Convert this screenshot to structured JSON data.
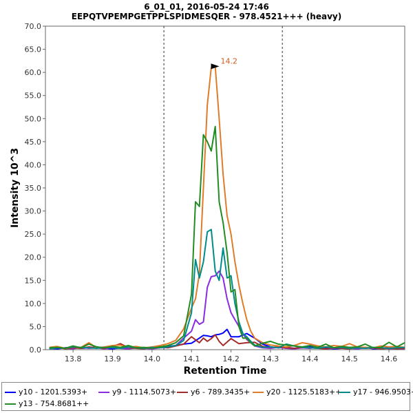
{
  "chart_data": {
    "type": "line",
    "title": "6_01_01, 2016-05-24 17:46",
    "subtitle": "EEPQTVPEMPGETPPLSPIDMESQER - 978.4521+++ (heavy)",
    "xlabel": "Retention Time",
    "ylabel": "Intensity 10^3",
    "xlim": [
      13.73,
      14.64
    ],
    "ylim": [
      0,
      70
    ],
    "x_ticks": [
      "13.8",
      "13.9",
      "14.0",
      "14.1",
      "14.2",
      "14.3",
      "14.4",
      "14.5",
      "14.6"
    ],
    "y_ticks": [
      "0.0",
      "5.0",
      "10.0",
      "15.0",
      "20.0",
      "25.0",
      "30.0",
      "35.0",
      "40.0",
      "45.0",
      "50.0",
      "55.0",
      "60.0",
      "65.0",
      "70.0"
    ],
    "vlines": [
      14.03,
      14.33
    ],
    "annotation": {
      "text": "14.2",
      "x": 14.165,
      "y": 61.3,
      "color": "#d45a1f"
    },
    "series": [
      {
        "name": "y10 - 1201.5393+",
        "color": "#0000ff",
        "x": [
          13.74,
          13.76,
          13.78,
          13.8,
          13.82,
          13.84,
          13.86,
          13.88,
          13.9,
          13.92,
          13.94,
          13.96,
          13.98,
          14.0,
          14.02,
          14.04,
          14.06,
          14.08,
          14.1,
          14.12,
          14.13,
          14.14,
          14.15,
          14.16,
          14.17,
          14.18,
          14.19,
          14.2,
          14.22,
          14.24,
          14.26,
          14.28,
          14.3,
          14.32,
          14.34,
          14.36,
          14.38,
          14.4,
          14.42,
          14.44,
          14.46,
          14.48,
          14.5,
          14.52,
          14.54,
          14.56,
          14.58,
          14.6,
          14.62,
          14.64
        ],
        "y": [
          0.3,
          0.2,
          0.4,
          0.5,
          0.3,
          0.4,
          0.6,
          0.3,
          0.2,
          0.4,
          0.3,
          0.5,
          0.3,
          0.4,
          0.6,
          0.7,
          0.9,
          1.2,
          1.4,
          2.5,
          3.1,
          3.0,
          2.8,
          3.2,
          3.3,
          3.6,
          4.4,
          2.8,
          2.8,
          3.5,
          2.5,
          1.2,
          0.6,
          0.4,
          0.5,
          0.3,
          0.4,
          0.6,
          0.3,
          0.4,
          0.2,
          0.3,
          0.4,
          0.3,
          0.5,
          0.2,
          0.3,
          0.4,
          0.2,
          0.3
        ]
      },
      {
        "name": "y9 - 1114.5073+",
        "color": "#8a2be2",
        "x": [
          13.74,
          13.76,
          13.78,
          13.8,
          13.82,
          13.84,
          13.86,
          13.88,
          13.9,
          13.92,
          13.94,
          13.96,
          13.98,
          14.0,
          14.02,
          14.04,
          14.06,
          14.08,
          14.1,
          14.11,
          14.12,
          14.13,
          14.14,
          14.15,
          14.16,
          14.17,
          14.18,
          14.19,
          14.2,
          14.21,
          14.22,
          14.23,
          14.24,
          14.26,
          14.28,
          14.3,
          14.32,
          14.34,
          14.36,
          14.38,
          14.4,
          14.42,
          14.44,
          14.46,
          14.48,
          14.5,
          14.52,
          14.54,
          14.56,
          14.58,
          14.6,
          14.62,
          14.64
        ],
        "y": [
          0.2,
          0.4,
          0.3,
          0.2,
          0.5,
          0.3,
          0.4,
          0.2,
          0.5,
          0.3,
          0.2,
          0.4,
          0.3,
          0.2,
          0.4,
          0.5,
          0.9,
          2.5,
          4.0,
          6.5,
          5.5,
          6.0,
          13.5,
          15.8,
          16.0,
          17.0,
          15.5,
          11.0,
          8.0,
          6.5,
          5.0,
          3.5,
          2.2,
          0.8,
          0.4,
          0.3,
          0.5,
          0.3,
          0.2,
          0.4,
          0.3,
          0.5,
          0.2,
          0.3,
          0.4,
          0.3,
          0.2,
          0.4,
          0.3,
          0.5,
          0.2,
          0.3,
          0.2
        ]
      },
      {
        "name": "y6 - 789.3435+",
        "color": "#a52a2a",
        "x": [
          13.74,
          13.76,
          13.78,
          13.8,
          13.82,
          13.84,
          13.86,
          13.88,
          13.9,
          13.92,
          13.94,
          13.96,
          13.98,
          14.0,
          14.02,
          14.04,
          14.06,
          14.08,
          14.1,
          14.12,
          14.13,
          14.14,
          14.15,
          14.16,
          14.17,
          14.18,
          14.2,
          14.22,
          14.24,
          14.26,
          14.28,
          14.3,
          14.32,
          14.34,
          14.36,
          14.38,
          14.4,
          14.42,
          14.44,
          14.46,
          14.48,
          14.5,
          14.52,
          14.54,
          14.56,
          14.58,
          14.6,
          14.62,
          14.64
        ],
        "y": [
          0.3,
          0.5,
          0.2,
          0.4,
          0.3,
          0.6,
          0.4,
          0.3,
          0.7,
          1.3,
          0.4,
          0.3,
          0.2,
          0.5,
          0.6,
          0.4,
          0.8,
          1.2,
          2.8,
          1.5,
          2.5,
          1.8,
          2.4,
          3.2,
          1.8,
          0.9,
          2.4,
          1.3,
          1.5,
          1.6,
          0.7,
          0.5,
          0.6,
          0.4,
          0.3,
          0.5,
          0.4,
          0.3,
          0.2,
          0.4,
          0.3,
          0.2,
          0.5,
          0.3,
          0.4,
          0.2,
          0.3,
          0.2,
          0.3
        ]
      },
      {
        "name": "y20 - 1125.5183++",
        "color": "#e07b27",
        "x": [
          13.74,
          13.76,
          13.78,
          13.8,
          13.82,
          13.84,
          13.86,
          13.88,
          13.9,
          13.92,
          13.94,
          13.96,
          13.98,
          14.0,
          14.02,
          14.04,
          14.06,
          14.08,
          14.1,
          14.11,
          14.12,
          14.13,
          14.14,
          14.15,
          14.16,
          14.17,
          14.18,
          14.19,
          14.2,
          14.21,
          14.22,
          14.23,
          14.24,
          14.25,
          14.26,
          14.28,
          14.3,
          14.32,
          14.34,
          14.36,
          14.38,
          14.4,
          14.42,
          14.44,
          14.46,
          14.48,
          14.5,
          14.52,
          14.54,
          14.56,
          14.58,
          14.6,
          14.62,
          14.64
        ],
        "y": [
          0.5,
          0.7,
          0.3,
          0.6,
          0.5,
          1.5,
          0.4,
          0.6,
          0.9,
          1.0,
          0.5,
          0.7,
          0.4,
          0.6,
          0.9,
          1.3,
          2.0,
          4.5,
          9.0,
          11.0,
          16.5,
          35.0,
          53.0,
          61.0,
          61.3,
          50.0,
          38.0,
          29.0,
          25.0,
          19.0,
          14.0,
          10.0,
          6.5,
          4.0,
          2.5,
          1.5,
          1.0,
          0.8,
          0.6,
          0.9,
          1.5,
          1.2,
          0.8,
          0.6,
          0.9,
          0.7,
          1.3,
          0.6,
          0.5,
          0.4,
          0.8,
          0.6,
          0.7,
          0.5
        ]
      },
      {
        "name": "y17 - 946.9503++",
        "color": "#008b8b",
        "x": [
          13.74,
          13.76,
          13.78,
          13.8,
          13.82,
          13.84,
          13.86,
          13.88,
          13.9,
          13.92,
          13.94,
          13.96,
          13.98,
          14.0,
          14.02,
          14.04,
          14.06,
          14.08,
          14.1,
          14.11,
          14.12,
          14.13,
          14.14,
          14.15,
          14.16,
          14.17,
          14.18,
          14.19,
          14.2,
          14.21,
          14.22,
          14.23,
          14.24,
          14.25,
          14.26,
          14.28,
          14.3,
          14.32,
          14.34,
          14.36,
          14.38,
          14.4,
          14.42,
          14.44,
          14.46,
          14.48,
          14.5,
          14.52,
          14.54,
          14.56,
          14.58,
          14.6,
          14.62,
          14.64
        ],
        "y": [
          0.2,
          0.4,
          0.3,
          0.6,
          0.5,
          0.4,
          0.3,
          0.5,
          0.4,
          0.3,
          0.6,
          0.4,
          0.3,
          0.5,
          0.4,
          0.6,
          0.9,
          2.0,
          8.0,
          19.5,
          15.5,
          19.0,
          25.5,
          26.0,
          17.0,
          15.0,
          22.0,
          15.5,
          16.0,
          10.0,
          6.0,
          3.5,
          2.8,
          1.8,
          1.0,
          0.5,
          0.6,
          0.4,
          1.2,
          0.8,
          0.5,
          0.4,
          0.3,
          0.6,
          0.4,
          0.5,
          0.3,
          0.4,
          0.3,
          0.5,
          0.4,
          0.3,
          0.4,
          0.5
        ]
      },
      {
        "name": "y13 - 754.8681++",
        "color": "#228b22",
        "x": [
          13.74,
          13.76,
          13.78,
          13.8,
          13.82,
          13.84,
          13.86,
          13.88,
          13.9,
          13.92,
          13.94,
          13.96,
          13.98,
          14.0,
          14.02,
          14.04,
          14.06,
          14.08,
          14.1,
          14.11,
          14.12,
          14.13,
          14.14,
          14.15,
          14.16,
          14.17,
          14.18,
          14.19,
          14.2,
          14.21,
          14.22,
          14.23,
          14.24,
          14.25,
          14.26,
          14.28,
          14.3,
          14.32,
          14.34,
          14.36,
          14.38,
          14.4,
          14.42,
          14.44,
          14.46,
          14.48,
          14.5,
          14.52,
          14.54,
          14.56,
          14.58,
          14.6,
          14.62,
          14.64
        ],
        "y": [
          0.4,
          0.5,
          0.3,
          0.8,
          0.4,
          1.2,
          0.6,
          0.4,
          0.7,
          0.5,
          0.9,
          0.4,
          0.5,
          0.3,
          0.6,
          0.9,
          1.5,
          3.0,
          12.0,
          32.0,
          31.0,
          46.5,
          45.0,
          43.0,
          48.3,
          32.0,
          27.5,
          21.0,
          12.5,
          13.0,
          5.0,
          2.5,
          2.5,
          1.5,
          0.8,
          1.4,
          1.8,
          1.2,
          1.0,
          0.8,
          0.6,
          0.9,
          0.5,
          1.2,
          0.4,
          0.7,
          0.5,
          0.6,
          1.2,
          0.4,
          0.5,
          1.6,
          0.6,
          1.5
        ]
      }
    ]
  }
}
